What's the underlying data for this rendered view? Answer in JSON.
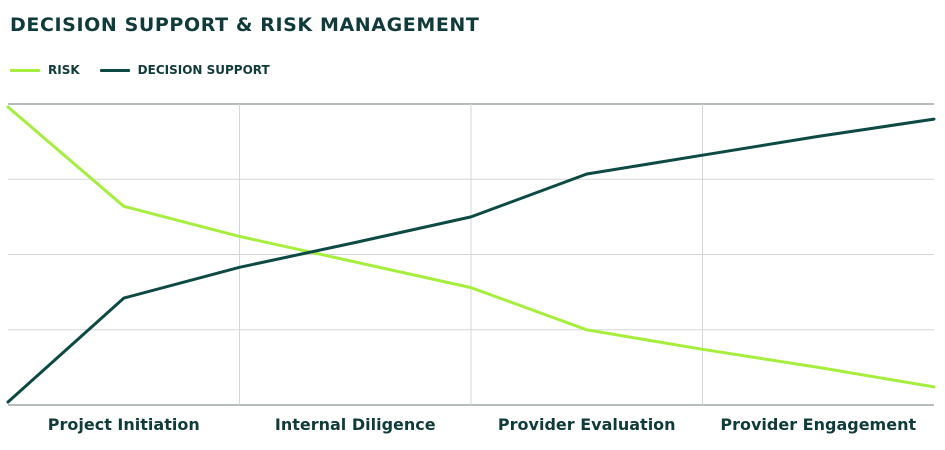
{
  "chart_data": {
    "type": "line",
    "title": "DECISION SUPPORT & RISK MANAGEMENT",
    "categories": [
      "Project Initiation",
      "Internal Diligence",
      "Provider Evaluation",
      "Provider Engagement"
    ],
    "x": [
      0,
      0.5,
      1,
      1.5,
      2,
      2.5,
      3,
      3.5,
      4
    ],
    "ylim": [
      0,
      4
    ],
    "grid": true,
    "legend_position": "top-left",
    "series": [
      {
        "name": "RISK",
        "color": "#a5ef3c",
        "values": [
          3.96,
          2.64,
          2.24,
          1.9,
          1.56,
          1.0,
          0.74,
          0.5,
          0.24
        ]
      },
      {
        "name": "DECISION SUPPORT",
        "color": "#0d4a44",
        "values": [
          0.04,
          1.42,
          1.83,
          2.16,
          2.5,
          3.07,
          3.32,
          3.57,
          3.8
        ]
      }
    ]
  }
}
